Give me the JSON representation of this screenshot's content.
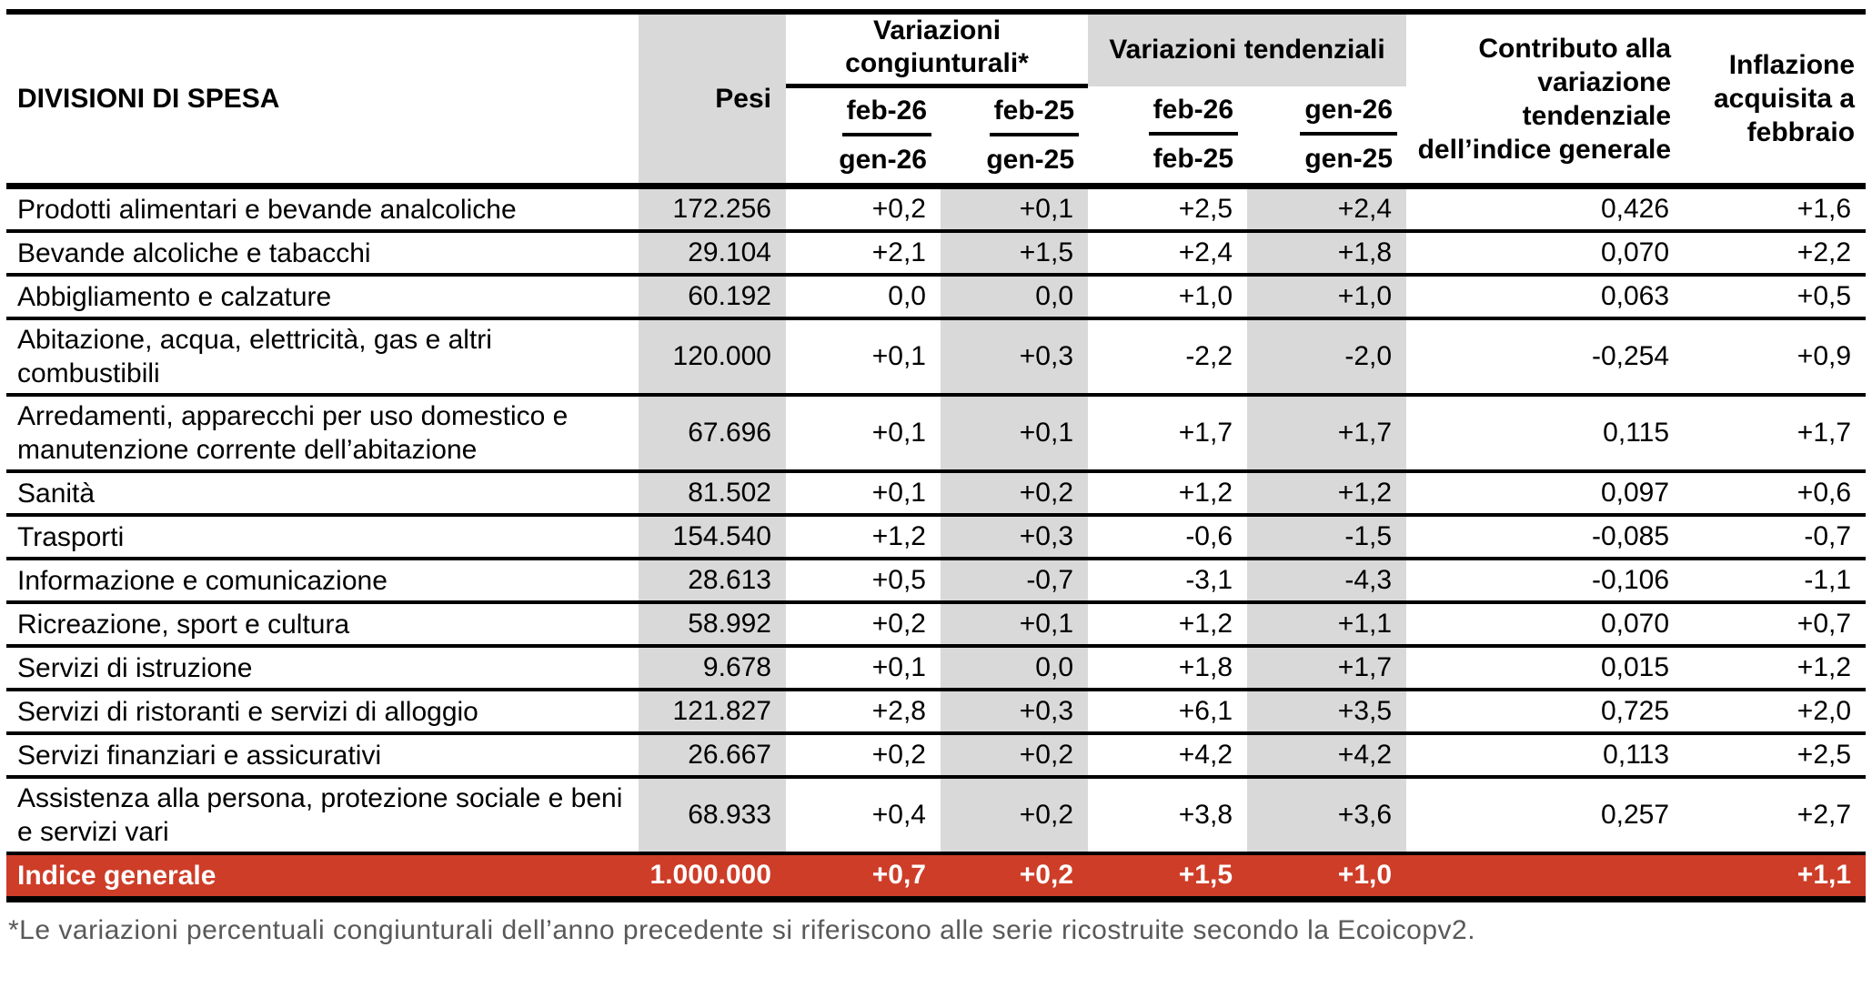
{
  "header": {
    "divisioni": "DIVISIONI DI SPESA",
    "pesi": "Pesi",
    "congiunturali": "Variazioni\ncongiunturali*",
    "tendenziali": "Variazioni tendenziali",
    "contributo": "Contributo alla\nvariazione\ntendenziale\ndell’indice generale",
    "inflazione": "Inflazione\nacquisita a\nfebbraio",
    "periods": [
      {
        "top": "feb-26",
        "bottom": "gen-26"
      },
      {
        "top": "feb-25",
        "bottom": "gen-25"
      },
      {
        "top": "feb-26",
        "bottom": "feb-25"
      },
      {
        "top": "gen-26",
        "bottom": "gen-25"
      }
    ]
  },
  "rows": [
    {
      "division": "Prodotti alimentari e bevande analcoliche",
      "pesi": "172.256",
      "cong_curr": "+0,2",
      "cong_prev": "+0,1",
      "tend_curr": "+2,5",
      "tend_prev": "+2,4",
      "contributo": "0,426",
      "inflazione": "+1,6"
    },
    {
      "division": "Bevande alcoliche e tabacchi",
      "pesi": "29.104",
      "cong_curr": "+2,1",
      "cong_prev": "+1,5",
      "tend_curr": "+2,4",
      "tend_prev": "+1,8",
      "contributo": "0,070",
      "inflazione": "+2,2"
    },
    {
      "division": "Abbigliamento e calzature",
      "pesi": "60.192",
      "cong_curr": "0,0",
      "cong_prev": "0,0",
      "tend_curr": "+1,0",
      "tend_prev": "+1,0",
      "contributo": "0,063",
      "inflazione": "+0,5"
    },
    {
      "division": "Abitazione, acqua, elettricità, gas e altri\ncombustibili",
      "pesi": "120.000",
      "cong_curr": "+0,1",
      "cong_prev": "+0,3",
      "tend_curr": "-2,2",
      "tend_prev": "-2,0",
      "contributo": "-0,254",
      "inflazione": "+0,9"
    },
    {
      "division": "Arredamenti, apparecchi per uso domestico e\nmanutenzione corrente dell’abitazione",
      "pesi": "67.696",
      "cong_curr": "+0,1",
      "cong_prev": "+0,1",
      "tend_curr": "+1,7",
      "tend_prev": "+1,7",
      "contributo": "0,115",
      "inflazione": "+1,7"
    },
    {
      "division": "Sanità",
      "pesi": "81.502",
      "cong_curr": "+0,1",
      "cong_prev": "+0,2",
      "tend_curr": "+1,2",
      "tend_prev": "+1,2",
      "contributo": "0,097",
      "inflazione": "+0,6"
    },
    {
      "division": "Trasporti",
      "pesi": "154.540",
      "cong_curr": "+1,2",
      "cong_prev": "+0,3",
      "tend_curr": "-0,6",
      "tend_prev": "-1,5",
      "contributo": "-0,085",
      "inflazione": "-0,7"
    },
    {
      "division": "Informazione e comunicazione",
      "pesi": "28.613",
      "cong_curr": "+0,5",
      "cong_prev": "-0,7",
      "tend_curr": "-3,1",
      "tend_prev": "-4,3",
      "contributo": "-0,106",
      "inflazione": "-1,1"
    },
    {
      "division": "Ricreazione, sport e cultura",
      "pesi": "58.992",
      "cong_curr": "+0,2",
      "cong_prev": "+0,1",
      "tend_curr": "+1,2",
      "tend_prev": "+1,1",
      "contributo": "0,070",
      "inflazione": "+0,7"
    },
    {
      "division": "Servizi di istruzione",
      "pesi": "9.678",
      "cong_curr": "+0,1",
      "cong_prev": "0,0",
      "tend_curr": "+1,8",
      "tend_prev": "+1,7",
      "contributo": "0,015",
      "inflazione": "+1,2"
    },
    {
      "division": "Servizi di ristoranti e servizi di alloggio",
      "pesi": "121.827",
      "cong_curr": "+2,8",
      "cong_prev": "+0,3",
      "tend_curr": "+6,1",
      "tend_prev": "+3,5",
      "contributo": "0,725",
      "inflazione": "+2,0"
    },
    {
      "division": "Servizi finanziari e assicurativi",
      "pesi": "26.667",
      "cong_curr": "+0,2",
      "cong_prev": "+0,2",
      "tend_curr": "+4,2",
      "tend_prev": "+4,2",
      "contributo": "0,113",
      "inflazione": "+2,5"
    },
    {
      "division": "Assistenza alla persona, protezione sociale e beni\ne servizi vari",
      "pesi": "68.933",
      "cong_curr": "+0,4",
      "cong_prev": "+0,2",
      "tend_curr": "+3,8",
      "tend_prev": "+3,6",
      "contributo": "0,257",
      "inflazione": "+2,7"
    }
  ],
  "total_row": {
    "division": "Indice generale",
    "pesi": "1.000.000",
    "cong_curr": "+0,7",
    "cong_prev": "+0,2",
    "tend_curr": "+1,5",
    "tend_prev": "+1,0",
    "contributo": "",
    "inflazione": "+1,1"
  },
  "footnote": "*Le variazioni percentuali congiunturali dell’anno precedente si riferiscono alle serie ricostruite secondo la Ecoicopv2.",
  "colors": {
    "accent_red": "#CE3D28",
    "stripe_gray": "#D9D9D9",
    "footnote_gray": "#595959",
    "border_black": "#000000"
  }
}
